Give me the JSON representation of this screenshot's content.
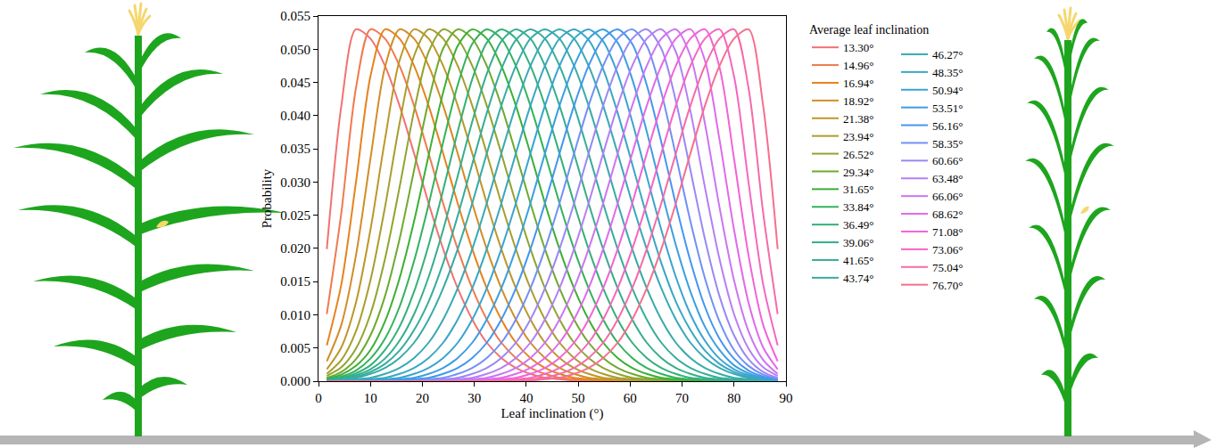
{
  "chart_data": {
    "type": "line",
    "x_label": "Leaf inclination (°)",
    "y_label": "Probability",
    "legend_title": "Average leaf inclination",
    "legend": "right",
    "grid": false,
    "xlim": [
      0,
      90
    ],
    "xticks": [
      0,
      10,
      20,
      30,
      40,
      50,
      60,
      70,
      80,
      90
    ],
    "ylim": [
      0,
      0.055
    ],
    "yticks": [
      {
        "value": 0,
        "label": "0.000"
      },
      0.005,
      {
        "value": 0.01,
        "label": "0.010"
      },
      0.015,
      {
        "value": 0.02,
        "label": "0.020"
      },
      0.025,
      {
        "value": 0.03,
        "label": "0.030"
      },
      0.035,
      {
        "value": 0.04,
        "label": "0.040"
      },
      0.045,
      {
        "value": 0.05,
        "label": "0.050"
      },
      0.055
    ],
    "x": [
      1.6,
      4.4,
      7.2,
      10,
      12.8,
      15.6,
      18.4,
      21.2,
      24,
      26.8,
      29.6,
      32.4,
      35.2,
      38,
      40.8,
      43.6,
      46.4,
      49.2,
      52,
      54.8,
      57.6,
      60.4,
      63.2,
      66,
      68.8,
      71.6,
      74.4,
      77.2,
      80,
      82.8,
      85.6,
      88.4
    ],
    "series": [
      {
        "name": "13.30°",
        "color": "#f27272",
        "values": [
          0.0199,
          0.0415,
          0.053,
          0.0516,
          0.0475,
          0.0415,
          0.0343,
          0.0268,
          0.0199,
          0.014,
          0.0093,
          0.0058,
          0.0035,
          0.002,
          0.0011,
          0.0005,
          0.0003,
          0.0001,
          0,
          0,
          0,
          0,
          0,
          0,
          0,
          0,
          0,
          0,
          0,
          0,
          0,
          0
        ]
      },
      {
        "name": "14.96°",
        "color": "#f07a4e",
        "values": [
          0.0101,
          0.0254,
          0.0441,
          0.053,
          0.0516,
          0.0475,
          0.0415,
          0.0343,
          0.0268,
          0.0199,
          0.014,
          0.0093,
          0.0058,
          0.0035,
          0.002,
          0.0011,
          0.0005,
          0.0003,
          0.0001,
          0,
          0,
          0,
          0,
          0,
          0,
          0,
          0,
          0,
          0,
          0,
          0,
          0
        ]
      },
      {
        "name": "16.94°",
        "color": "#e5831e",
        "values": [
          0.0054,
          0.0146,
          0.0299,
          0.0459,
          0.053,
          0.0516,
          0.0475,
          0.0415,
          0.0343,
          0.0268,
          0.0199,
          0.014,
          0.0093,
          0.0058,
          0.0035,
          0.002,
          0.0011,
          0.0005,
          0.0003,
          0.0001,
          0,
          0,
          0,
          0,
          0,
          0,
          0,
          0,
          0,
          0,
          0,
          0
        ]
      },
      {
        "name": "18.92°",
        "color": "#d28d27",
        "values": [
          0.003,
          0.0085,
          0.0189,
          0.0335,
          0.0473,
          0.053,
          0.0516,
          0.0475,
          0.0415,
          0.0343,
          0.0268,
          0.0199,
          0.014,
          0.0093,
          0.0058,
          0.0035,
          0.002,
          0.0011,
          0.0005,
          0.0003,
          0.0001,
          0,
          0,
          0,
          0,
          0,
          0,
          0,
          0,
          0,
          0,
          0
        ]
      },
      {
        "name": "21.38°",
        "color": "#bd972b",
        "values": [
          0.0018,
          0.0051,
          0.0118,
          0.0228,
          0.0364,
          0.0483,
          0.053,
          0.0516,
          0.0475,
          0.0415,
          0.0343,
          0.0268,
          0.0199,
          0.014,
          0.0093,
          0.0058,
          0.0035,
          0.002,
          0.0011,
          0.0005,
          0.0003,
          0.0001,
          0,
          0,
          0,
          0,
          0,
          0,
          0,
          0,
          0,
          0
        ]
      },
      {
        "name": "23.94°",
        "color": "#a89e2d",
        "values": [
          0.0011,
          0.0032,
          0.0075,
          0.0152,
          0.0262,
          0.0388,
          0.049,
          0.053,
          0.0516,
          0.0475,
          0.0415,
          0.0343,
          0.0268,
          0.0199,
          0.014,
          0.0093,
          0.0058,
          0.0035,
          0.002,
          0.0011,
          0.0005,
          0.0003,
          0.0001,
          0,
          0,
          0,
          0,
          0,
          0,
          0,
          0,
          0
        ]
      },
      {
        "name": "26.52°",
        "color": "#91a42e",
        "values": [
          0.0008,
          0.0021,
          0.0049,
          0.0101,
          0.0184,
          0.0292,
          0.0407,
          0.0496,
          0.053,
          0.0516,
          0.0475,
          0.0415,
          0.0343,
          0.0268,
          0.0199,
          0.014,
          0.0093,
          0.0058,
          0.0035,
          0.002,
          0.0011,
          0.0005,
          0.0003,
          0.0001,
          0,
          0,
          0,
          0,
          0,
          0,
          0,
          0
        ]
      },
      {
        "name": "29.34°",
        "color": "#6eaa2f",
        "values": [
          0.0005,
          0.0014,
          0.0033,
          0.0069,
          0.0128,
          0.0214,
          0.0318,
          0.0422,
          0.0501,
          0.053,
          0.0516,
          0.0475,
          0.0415,
          0.0343,
          0.0268,
          0.0199,
          0.014,
          0.0093,
          0.0058,
          0.0035,
          0.002,
          0.0011,
          0.0005,
          0.0003,
          0.0001,
          0,
          0,
          0,
          0,
          0,
          0,
          0
        ]
      },
      {
        "name": "31.65°",
        "color": "#3bb033",
        "values": [
          0.0004,
          0.001,
          0.0023,
          0.0047,
          0.009,
          0.0155,
          0.0241,
          0.034,
          0.0435,
          0.0505,
          0.053,
          0.0516,
          0.0475,
          0.0415,
          0.0343,
          0.0268,
          0.0199,
          0.014,
          0.0093,
          0.0058,
          0.0035,
          0.002,
          0.0011,
          0.0005,
          0.0003,
          0.0001,
          0,
          0,
          0,
          0,
          0,
          0
        ]
      },
      {
        "name": "33.84°",
        "color": "#33b25c",
        "values": [
          0.0003,
          0.0007,
          0.0016,
          0.0034,
          0.0064,
          0.0112,
          0.0181,
          0.0266,
          0.036,
          0.0446,
          0.0508,
          0.053,
          0.0516,
          0.0475,
          0.0415,
          0.0343,
          0.0268,
          0.0199,
          0.014,
          0.0093,
          0.0058,
          0.0035,
          0.002,
          0.0011,
          0.0005,
          0.0003,
          0.0001,
          0,
          0,
          0,
          0,
          0
        ]
      },
      {
        "name": "36.49°",
        "color": "#34b079",
        "values": [
          0.0002,
          0.0005,
          0.0012,
          0.0024,
          0.0047,
          0.0082,
          0.0135,
          0.0205,
          0.0288,
          0.0376,
          0.0455,
          0.051,
          0.053,
          0.0516,
          0.0475,
          0.0415,
          0.0343,
          0.0268,
          0.0199,
          0.014,
          0.0093,
          0.0058,
          0.0035,
          0.002,
          0.0011,
          0.0005,
          0.0003,
          0.0001,
          0,
          0,
          0,
          0
        ]
      },
      {
        "name": "39.06°",
        "color": "#35ae8c",
        "values": [
          0.0002,
          0.0004,
          0.0009,
          0.0018,
          0.0034,
          0.0061,
          0.0101,
          0.0157,
          0.0228,
          0.0309,
          0.0391,
          0.0463,
          0.0512,
          0.053,
          0.0516,
          0.0475,
          0.0415,
          0.0343,
          0.0268,
          0.0199,
          0.014,
          0.0093,
          0.0058,
          0.0035,
          0.002,
          0.0011,
          0.0005,
          0.0003,
          0.0001,
          0,
          0,
          0
        ]
      },
      {
        "name": "41.65°",
        "color": "#36ad9b",
        "values": [
          0.0001,
          0.0003,
          0.0007,
          0.0014,
          0.0026,
          0.0046,
          0.0077,
          0.012,
          0.0178,
          0.0249,
          0.0327,
          0.0404,
          0.047,
          0.0514,
          0.053,
          0.0516,
          0.0475,
          0.0415,
          0.0343,
          0.0268,
          0.0199,
          0.014,
          0.0093,
          0.0058,
          0.0035,
          0.002,
          0.0011,
          0.0005,
          0.0003,
          0.0001,
          0,
          0
        ]
      },
      {
        "name": "43.74°",
        "color": "#37aba8",
        "values": [
          0.0001,
          0.0003,
          0.0005,
          0.0011,
          0.002,
          0.0035,
          0.0058,
          0.0093,
          0.014,
          0.0199,
          0.0268,
          0.0343,
          0.0415,
          0.0475,
          0.0516,
          0.053,
          0.0516,
          0.0475,
          0.0415,
          0.0343,
          0.0268,
          0.0199,
          0.014,
          0.0093,
          0.0058,
          0.0035,
          0.002,
          0.0011,
          0.0005,
          0.0003,
          0.0001,
          0
        ]
      },
      {
        "name": "46.27°",
        "color": "#38a9b5",
        "values": [
          0,
          0.0001,
          0.0003,
          0.0005,
          0.0011,
          0.002,
          0.0035,
          0.0058,
          0.0093,
          0.014,
          0.0199,
          0.0268,
          0.0343,
          0.0415,
          0.0475,
          0.0516,
          0.053,
          0.0516,
          0.0475,
          0.0415,
          0.0343,
          0.0268,
          0.0199,
          0.014,
          0.0093,
          0.0058,
          0.0035,
          0.002,
          0.0011,
          0.0005,
          0.0003,
          0.0001
        ]
      },
      {
        "name": "48.35°",
        "color": "#39a7c2",
        "values": [
          0,
          0,
          0.0001,
          0.0003,
          0.0005,
          0.0011,
          0.002,
          0.0035,
          0.0058,
          0.0093,
          0.014,
          0.0199,
          0.0268,
          0.0343,
          0.0415,
          0.0475,
          0.0516,
          0.053,
          0.0514,
          0.047,
          0.0404,
          0.0327,
          0.0249,
          0.0178,
          0.012,
          0.0077,
          0.0046,
          0.0026,
          0.0014,
          0.0007,
          0.0003,
          0.0001
        ]
      },
      {
        "name": "50.94°",
        "color": "#3aa4d0",
        "values": [
          0,
          0,
          0,
          0.0001,
          0.0003,
          0.0005,
          0.0011,
          0.002,
          0.0035,
          0.0058,
          0.0093,
          0.014,
          0.0199,
          0.0268,
          0.0343,
          0.0415,
          0.0475,
          0.0516,
          0.053,
          0.0512,
          0.0463,
          0.0391,
          0.0309,
          0.0228,
          0.0157,
          0.0101,
          0.0061,
          0.0034,
          0.0018,
          0.0009,
          0.0004,
          0.0002
        ]
      },
      {
        "name": "53.51°",
        "color": "#3b9fe0",
        "values": [
          0,
          0,
          0,
          0,
          0.0001,
          0.0003,
          0.0005,
          0.0011,
          0.002,
          0.0035,
          0.0058,
          0.0093,
          0.014,
          0.0199,
          0.0268,
          0.0343,
          0.0415,
          0.0475,
          0.0516,
          0.053,
          0.051,
          0.0455,
          0.0376,
          0.0288,
          0.0205,
          0.0135,
          0.0082,
          0.0047,
          0.0024,
          0.0012,
          0.0005,
          0.0002
        ]
      },
      {
        "name": "56.16°",
        "color": "#4496ef",
        "values": [
          0,
          0,
          0,
          0,
          0,
          0.0001,
          0.0003,
          0.0005,
          0.0011,
          0.002,
          0.0035,
          0.0058,
          0.0093,
          0.014,
          0.0199,
          0.0268,
          0.0343,
          0.0415,
          0.0475,
          0.0516,
          0.053,
          0.0508,
          0.0446,
          0.036,
          0.0266,
          0.0181,
          0.0112,
          0.0064,
          0.0034,
          0.0016,
          0.0007,
          0.0003
        ]
      },
      {
        "name": "58.35°",
        "color": "#7290f4",
        "values": [
          0,
          0,
          0,
          0,
          0,
          0,
          0.0001,
          0.0003,
          0.0005,
          0.0011,
          0.002,
          0.0035,
          0.0058,
          0.0093,
          0.014,
          0.0199,
          0.0268,
          0.0343,
          0.0415,
          0.0475,
          0.0516,
          0.053,
          0.0505,
          0.0435,
          0.034,
          0.0241,
          0.0155,
          0.009,
          0.0047,
          0.0023,
          0.001,
          0.0004
        ]
      },
      {
        "name": "60.66°",
        "color": "#9a88f4",
        "values": [
          0,
          0,
          0,
          0,
          0,
          0,
          0,
          0.0001,
          0.0003,
          0.0005,
          0.0011,
          0.002,
          0.0035,
          0.0058,
          0.0093,
          0.014,
          0.0199,
          0.0268,
          0.0343,
          0.0415,
          0.0475,
          0.0516,
          0.053,
          0.0501,
          0.0422,
          0.0318,
          0.0214,
          0.0128,
          0.0069,
          0.0033,
          0.0014,
          0.0005
        ]
      },
      {
        "name": "63.48°",
        "color": "#b67ff4",
        "values": [
          0,
          0,
          0,
          0,
          0,
          0,
          0,
          0,
          0.0001,
          0.0003,
          0.0005,
          0.0011,
          0.002,
          0.0035,
          0.0058,
          0.0093,
          0.014,
          0.0199,
          0.0268,
          0.0343,
          0.0415,
          0.0475,
          0.0516,
          0.053,
          0.0496,
          0.0407,
          0.0292,
          0.0184,
          0.0101,
          0.0049,
          0.0021,
          0.0008
        ]
      },
      {
        "name": "66.06°",
        "color": "#cc75f2",
        "values": [
          0,
          0,
          0,
          0,
          0,
          0,
          0,
          0,
          0,
          0.0001,
          0.0003,
          0.0005,
          0.0011,
          0.002,
          0.0035,
          0.0058,
          0.0093,
          0.014,
          0.0199,
          0.0268,
          0.0343,
          0.0415,
          0.0475,
          0.0516,
          0.053,
          0.049,
          0.0388,
          0.0262,
          0.0152,
          0.0075,
          0.0032,
          0.0011
        ]
      },
      {
        "name": "68.62°",
        "color": "#e06aea",
        "values": [
          0,
          0,
          0,
          0,
          0,
          0,
          0,
          0,
          0,
          0,
          0.0001,
          0.0003,
          0.0005,
          0.0011,
          0.002,
          0.0035,
          0.0058,
          0.0093,
          0.014,
          0.0199,
          0.0268,
          0.0343,
          0.0415,
          0.0475,
          0.0516,
          0.053,
          0.0483,
          0.0364,
          0.0228,
          0.0118,
          0.0051,
          0.0018
        ]
      },
      {
        "name": "71.08°",
        "color": "#f264d6",
        "values": [
          0,
          0,
          0,
          0,
          0,
          0,
          0,
          0,
          0,
          0,
          0,
          0.0001,
          0.0003,
          0.0005,
          0.0011,
          0.002,
          0.0035,
          0.0058,
          0.0093,
          0.014,
          0.0199,
          0.0268,
          0.0343,
          0.0415,
          0.0475,
          0.0516,
          0.053,
          0.0473,
          0.0335,
          0.0189,
          0.0085,
          0.003
        ]
      },
      {
        "name": "73.06°",
        "color": "#f467c1",
        "values": [
          0,
          0,
          0,
          0,
          0,
          0,
          0,
          0,
          0,
          0,
          0,
          0,
          0.0001,
          0.0003,
          0.0005,
          0.0011,
          0.002,
          0.0035,
          0.0058,
          0.0093,
          0.014,
          0.0199,
          0.0268,
          0.0343,
          0.0415,
          0.0475,
          0.0516,
          0.053,
          0.0459,
          0.0299,
          0.0146,
          0.0054
        ]
      },
      {
        "name": "75.04°",
        "color": "#f56ba9",
        "values": [
          0,
          0,
          0,
          0,
          0,
          0,
          0,
          0,
          0,
          0,
          0,
          0,
          0,
          0.0001,
          0.0003,
          0.0005,
          0.0011,
          0.002,
          0.0035,
          0.0058,
          0.0093,
          0.014,
          0.0199,
          0.0268,
          0.0343,
          0.0415,
          0.0475,
          0.0516,
          0.053,
          0.0441,
          0.0254,
          0.0101
        ]
      },
      {
        "name": "76.70°",
        "color": "#f66f8f",
        "values": [
          0,
          0,
          0,
          0,
          0,
          0,
          0,
          0,
          0,
          0,
          0,
          0,
          0,
          0,
          0.0001,
          0.0003,
          0.0005,
          0.0011,
          0.002,
          0.0035,
          0.0058,
          0.0093,
          0.014,
          0.0199,
          0.0268,
          0.0343,
          0.0415,
          0.0475,
          0.0516,
          0.053,
          0.0415,
          0.0199
        ]
      }
    ]
  }
}
